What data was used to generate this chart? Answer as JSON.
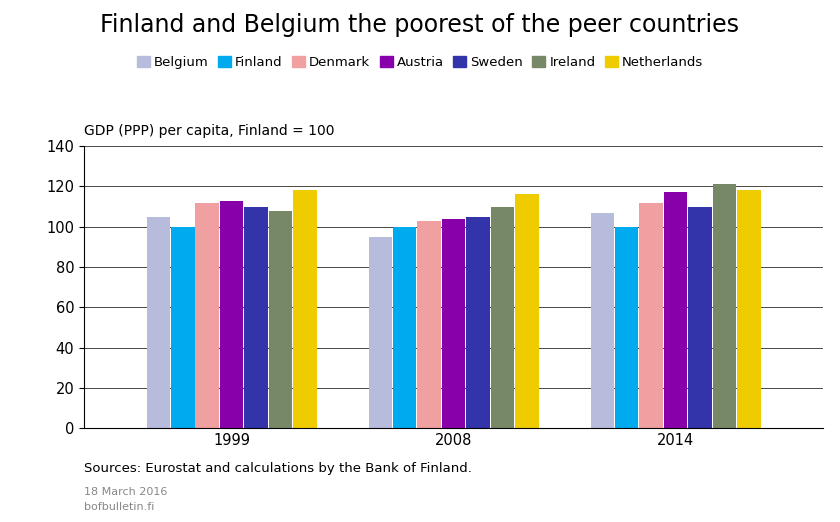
{
  "title": "Finland and Belgium the poorest of the peer countries",
  "ylabel": "GDP (PPP) per capita, Finland = 100",
  "ylim": [
    0,
    140
  ],
  "yticks": [
    0,
    20,
    40,
    60,
    80,
    100,
    120,
    140
  ],
  "years": [
    "1999",
    "2008",
    "2014"
  ],
  "countries": [
    "Belgium",
    "Finland",
    "Denmark",
    "Austria",
    "Sweden",
    "Ireland",
    "Netherlands"
  ],
  "colors": [
    "#b8bcdc",
    "#00aaee",
    "#f0a0a0",
    "#8800aa",
    "#3333aa",
    "#778866",
    "#eecc00"
  ],
  "values": {
    "1999": [
      105,
      100,
      112,
      113,
      110,
      108,
      118
    ],
    "2008": [
      95,
      100,
      103,
      104,
      105,
      110,
      116
    ],
    "2014": [
      107,
      100,
      112,
      117,
      110,
      121,
      118
    ]
  },
  "source_text": "Sources: Eurostat and calculations by the Bank of Finland.",
  "source_date": "18 March 2016",
  "source_url": "bofbulletin.fi",
  "title_fontsize": 17,
  "legend_fontsize": 9.5,
  "axis_label_fontsize": 10,
  "tick_fontsize": 10.5
}
